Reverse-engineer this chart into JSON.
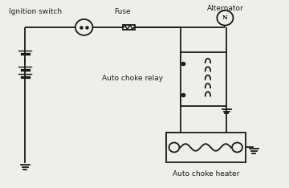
{
  "bg_color": "#f0eeea",
  "line_color": "#1a1a1a",
  "labels": {
    "ignition_switch": "Ignition switch",
    "fuse": "Fuse",
    "alternator": "Alternator",
    "relay": "Auto choke relay",
    "heater": "Auto choke heater"
  },
  "lw": 1.3
}
